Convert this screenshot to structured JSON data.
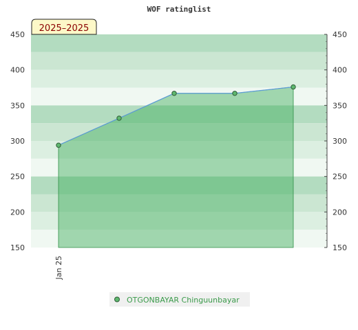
{
  "chart_data": {
    "type": "area",
    "title": "WOF ratinglist",
    "season_label": "2025–2025",
    "ylim": [
      150,
      450
    ],
    "y_ticks": [
      150,
      200,
      250,
      300,
      350,
      400,
      450
    ],
    "x_tick_labels": [
      {
        "x": 0,
        "label": "Jan 25"
      }
    ],
    "series": [
      {
        "name": "OTGONBAYAR Chinguunbayar",
        "x": [
          0,
          1,
          2,
          3,
          4
        ],
        "values": [
          294,
          332,
          367,
          367,
          376
        ]
      }
    ],
    "legend_position": "bottom",
    "colors": {
      "line": "#5b9bd5",
      "fill": "#3fae5a",
      "marker": "#5fb86f",
      "band_dark": "#b3dcc0",
      "band_mid": "#cbe6d2",
      "band_light": "#dcefe1",
      "band_pale": "#f0f8f2"
    }
  }
}
